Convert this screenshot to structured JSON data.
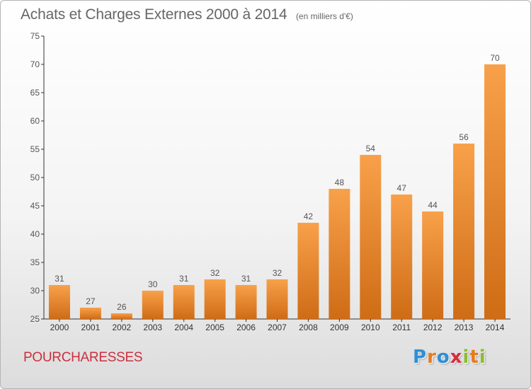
{
  "header": {
    "title": "Achats et Charges Externes 2000 à 2014",
    "subtitle": "(en milliers d'€)"
  },
  "footer": {
    "commune": "POURCHARESSES",
    "logo_text": "Proxiti",
    "logo_letters": [
      {
        "char": "P",
        "color": "#2e8fd6"
      },
      {
        "char": "r",
        "color": "#e87a1e"
      },
      {
        "char": "o",
        "color": "#2e8fd6"
      },
      {
        "char": "x",
        "color": "#d62e3c"
      },
      {
        "char": "i",
        "color": "#8bbd2a"
      },
      {
        "char": "t",
        "color": "#e87a1e"
      },
      {
        "char": "i",
        "color": "#8bbd2a"
      }
    ]
  },
  "colors": {
    "bar_top": "#f8a14a",
    "bar_bottom": "#cf6c16",
    "commune_text": "#cc2f3f"
  },
  "chart_data": {
    "type": "bar",
    "title": "Achats et Charges Externes 2000 à 2014",
    "subtitle": "(en milliers d'€)",
    "categories": [
      "2000",
      "2001",
      "2002",
      "2003",
      "2004",
      "2005",
      "2006",
      "2007",
      "2008",
      "2009",
      "2010",
      "2011",
      "2012",
      "2013",
      "2014"
    ],
    "values": [
      31,
      27,
      26,
      30,
      31,
      32,
      31,
      32,
      42,
      48,
      54,
      47,
      44,
      56,
      70
    ],
    "ylim": [
      25,
      75
    ],
    "yticks": [
      25,
      30,
      35,
      40,
      45,
      50,
      55,
      60,
      65,
      70,
      75
    ],
    "grid": false,
    "xlabel": "",
    "ylabel": ""
  }
}
